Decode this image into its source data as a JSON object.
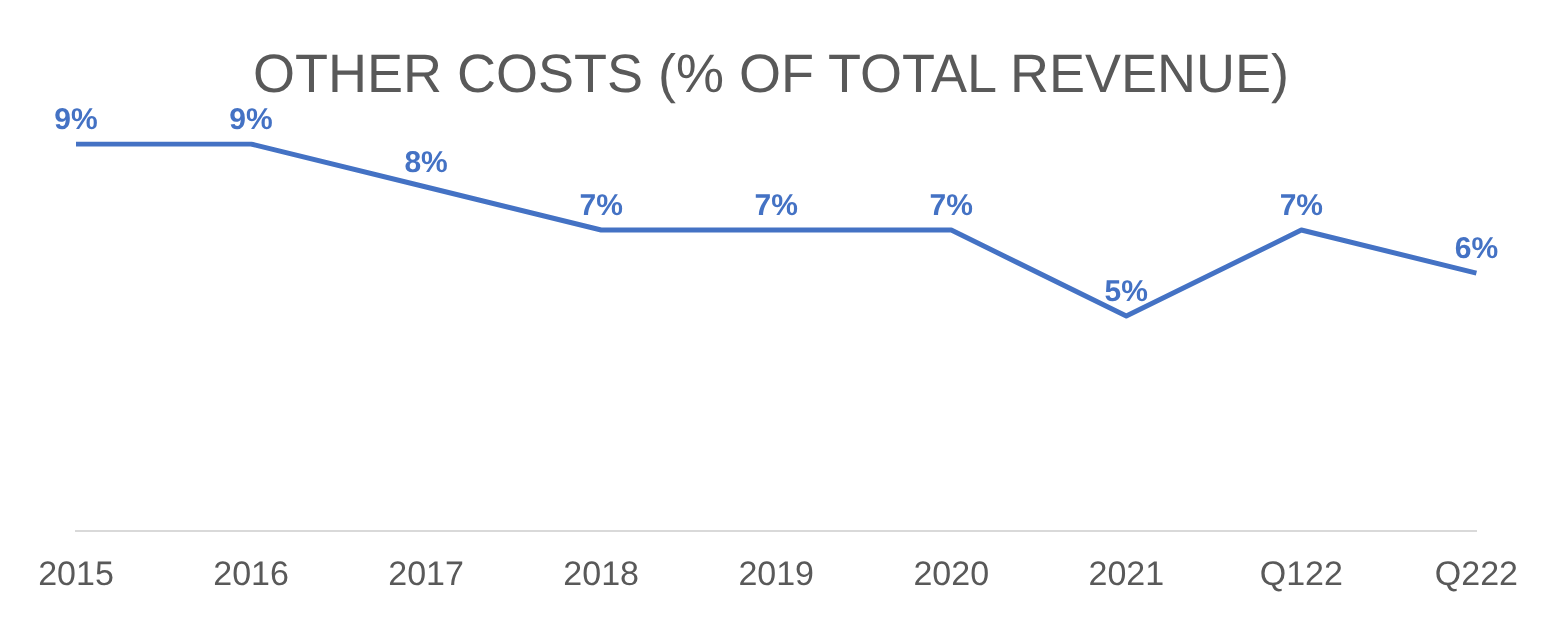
{
  "chart_data": {
    "type": "line",
    "title": "OTHER COSTS (% OF TOTAL REVENUE)",
    "categories": [
      "2015",
      "2016",
      "2017",
      "2018",
      "2019",
      "2020",
      "2021",
      "Q122",
      "Q222"
    ],
    "series": [
      {
        "color": "#4472c4",
        "values": [
          9,
          9,
          8,
          7,
          7,
          7,
          5,
          7,
          6
        ],
        "value_labels": [
          "9%",
          "9%",
          "8%",
          "7%",
          "7%",
          "7%",
          "5%",
          "7%",
          "6%"
        ]
      }
    ],
    "grid": false,
    "legend": false,
    "marker": "none",
    "line_style": "solid"
  }
}
